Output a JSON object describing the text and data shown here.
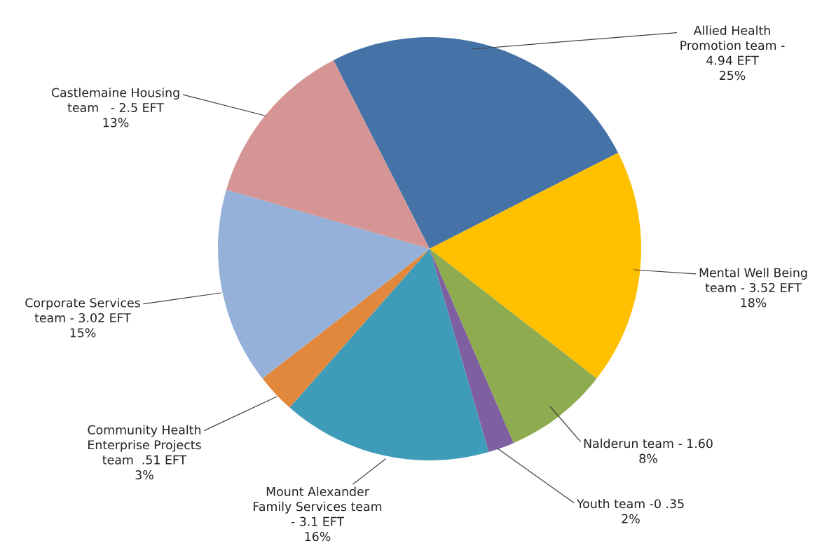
{
  "chart_data": {
    "type": "pie",
    "categories": [
      "Allied Health\nPromotion team -\n4.94 EFT",
      "Mental Well Being\nteam - 3.52 EFT",
      "Nalderun team - 1.60",
      "Youth team -0 .35",
      "Mount Alexander\nFamily Services team\n- 3.1 EFT",
      "Community Health\nEnterprise Projects\nteam  .51 EFT",
      "Corporate Services\nteam - 3.02 EFT",
      "Castlemaine Housing\nteam   - 2.5 EFT"
    ],
    "values": [
      25,
      18,
      8,
      2,
      16,
      3,
      15,
      13
    ],
    "value_labels": [
      "25%",
      "18%",
      "8%",
      "2%",
      "16%",
      "3%",
      "15%",
      "13%"
    ],
    "colors": [
      "#4572a7",
      "#ffc000",
      "#8fab4f",
      "#7e60a0",
      "#3f9cb8",
      "#e2883c",
      "#95b1d9",
      "#d59594"
    ]
  }
}
